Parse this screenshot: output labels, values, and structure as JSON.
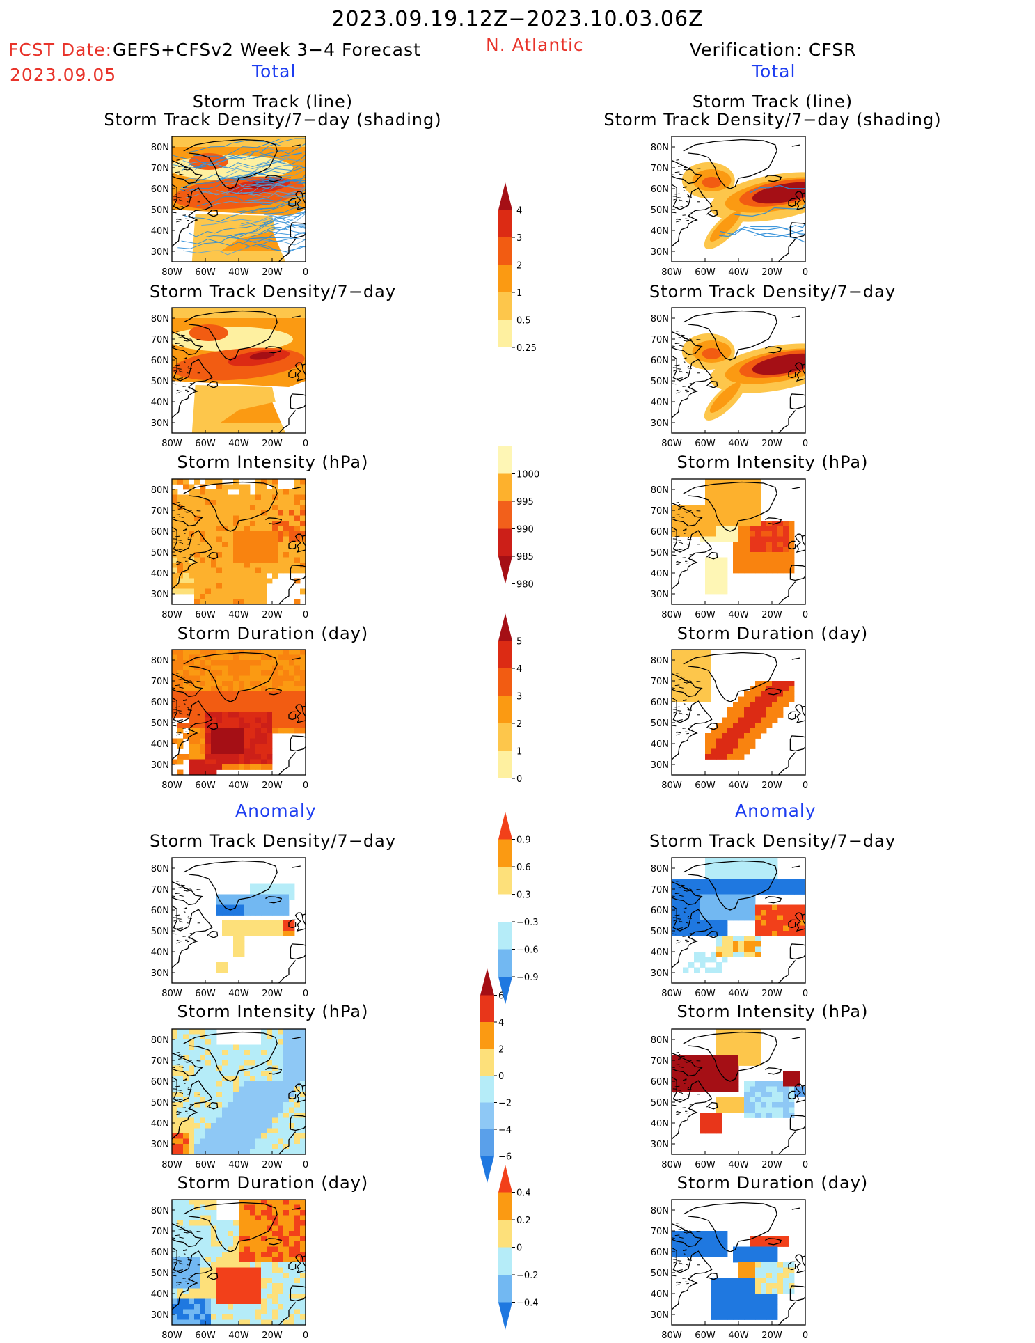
{
  "header": {
    "date_range": "2023.09.19.12Z−2023.10.03.06Z",
    "fcst_date_label": "FCST Date:",
    "fcst_date": "2023.09.05",
    "forecast_model": "GEFS+CFSv2 Week 3−4 Forecast",
    "region": "N. Atlantic",
    "verification": "Verification: CFSR"
  },
  "sections": {
    "total_left": "Total",
    "total_right": "Total",
    "anomaly_left": "Anomaly",
    "anomaly_right": "Anomaly"
  },
  "panels": {
    "track_line": "Storm Track (line)",
    "track_shading": "Storm Track Density/7−day (shading)",
    "density": "Storm Track Density/7−day",
    "intensity": "Storm Intensity (hPa)",
    "duration": "Storm Duration (day)"
  },
  "axes": {
    "lat_ticks": [
      "80N",
      "70N",
      "60N",
      "50N",
      "40N",
      "30N"
    ],
    "lon_ticks": [
      "80W",
      "60W",
      "40W",
      "20W",
      "0"
    ]
  },
  "colorbars": {
    "density_total": {
      "labels": [
        "4",
        "3",
        "2",
        "1",
        "0.5",
        "0.25"
      ],
      "colors": [
        "#a50f15",
        "#dc2b14",
        "#f25c12",
        "#fb9a12",
        "#fdc64b",
        "#fef0a0"
      ]
    },
    "intensity_total": {
      "labels": [
        "1000",
        "995",
        "990",
        "985",
        "980"
      ],
      "colors": [
        "#fef6b5",
        "#fdb12d",
        "#f2601b",
        "#cc1f18",
        "#a50f15"
      ]
    },
    "duration_total": {
      "labels": [
        "5",
        "4",
        "3",
        "2",
        "1",
        "0"
      ],
      "colors": [
        "#a50f15",
        "#dc2b14",
        "#f25c12",
        "#fb9a12",
        "#fdc64b",
        "#fef0a0"
      ]
    },
    "density_anom": {
      "labels": [
        "0.9",
        "0.6",
        "0.3",
        "−0.3",
        "−0.6",
        "−0.9"
      ],
      "colors": [
        "#f2401a",
        "#fb9a12",
        "#fde07a",
        "#ffffff",
        "#b5ecf8",
        "#72b8f2",
        "#1f78e0"
      ]
    },
    "intensity_anom": {
      "labels": [
        "6",
        "4",
        "2",
        "0",
        "−2",
        "−4",
        "−6"
      ],
      "colors": [
        "#a50f15",
        "#e8361a",
        "#fb9a12",
        "#fde07a",
        "#b5ecf8",
        "#8ec8f5",
        "#5aa0ea",
        "#1f78e0"
      ]
    },
    "duration_anom": {
      "labels": [
        "0.4",
        "0.2",
        "0",
        "−0.2",
        "−0.4"
      ],
      "colors": [
        "#f2401a",
        "#fb9a12",
        "#fde07a",
        "#b5ecf8",
        "#72b8f2",
        "#1f78e0"
      ]
    }
  }
}
